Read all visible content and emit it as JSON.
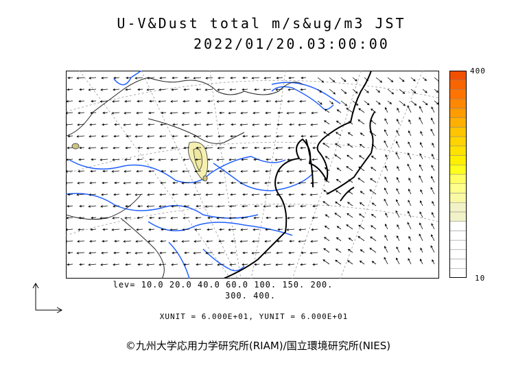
{
  "header": {
    "title": "U-V&Dust total m/s&ug/m3 JST",
    "timestamp": "2022/01/20.03:00:00"
  },
  "colorbar": {
    "max_label": "400",
    "min_label": "10",
    "colors": [
      "#f2f2c8",
      "#fafaa5",
      "#ffff8c",
      "#ffff64",
      "#ffff1e",
      "#fff000",
      "#ffe200",
      "#ffd400",
      "#ffc500",
      "#ffb000",
      "#ff9c00",
      "#ff8800",
      "#ff7400",
      "#f86400",
      "#f05000"
    ]
  },
  "legend": {
    "levels_line1": "lev= 10.0 20.0 40.0 60.0 100. 150. 200.",
    "levels_line2": "300. 400.",
    "units": "XUNIT = 6.000E+01, YUNIT = 6.000E+01"
  },
  "footer": {
    "credit": "©九州大学応用力学研究所(RIAM)/国立環境研究所(NIES)"
  },
  "map_colors": {
    "rivers": "#1f5fff",
    "coast": "#000000",
    "borders": "#333333",
    "grid": "#999999",
    "dust_fill": "#f5f0b0"
  }
}
